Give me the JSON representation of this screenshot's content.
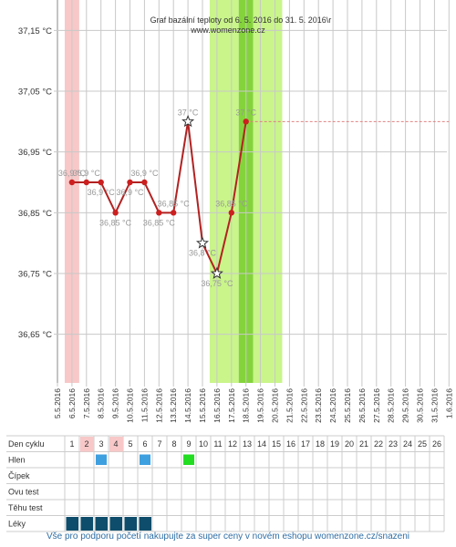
{
  "chart_data": {
    "type": "line",
    "title": "Graf bazální teploty od 6. 5. 2016 do 31. 5. 2016\\r",
    "subtitle": "www.womenzone.cz",
    "y_ticks": [
      "37,15 °C",
      "37,05 °C",
      "36,95 °C",
      "36,85 °C",
      "36,75 °C",
      "36,65 °C"
    ],
    "ylim": [
      36.57,
      37.2
    ],
    "x_dates": [
      "5.5.2016",
      "6.5.2016",
      "7.5.2016",
      "8.5.2016",
      "9.5.2016",
      "10.5.2016",
      "11.5.2016",
      "12.5.2016",
      "13.5.2016",
      "14.5.2016",
      "15.5.2016",
      "16.5.2016",
      "17.5.2016",
      "18.5.2016",
      "19.5.2016",
      "20.5.2016",
      "21.5.2016",
      "22.5.2016",
      "23.5.2016",
      "24.5.2016",
      "25.5.2016",
      "26.5.2016",
      "27.5.2016",
      "28.5.2016",
      "29.5.2016",
      "30.5.2016",
      "31.5.2016",
      "1.6.2016"
    ],
    "series": [
      {
        "values": [
          {
            "x": 1,
            "y": 36.9,
            "label": "36,9 °C",
            "marker": "dot"
          },
          {
            "x": 2,
            "y": 36.9,
            "label": "36,9 °C",
            "marker": "dot"
          },
          {
            "x": 3,
            "y": 36.9,
            "label": "36,9 °C",
            "marker": "dot"
          },
          {
            "x": 4,
            "y": 36.85,
            "label": "36,85 °C",
            "marker": "dot"
          },
          {
            "x": 5,
            "y": 36.9,
            "label": "36,9 °C",
            "marker": "dot"
          },
          {
            "x": 6,
            "y": 36.9,
            "label": "36,9 °C",
            "marker": "dot"
          },
          {
            "x": 7,
            "y": 36.85,
            "label": "36,85 °C",
            "marker": "dot"
          },
          {
            "x": 8,
            "y": 36.85,
            "label": "36,85 °C",
            "marker": "dot"
          },
          {
            "x": 9,
            "y": 37.0,
            "label": "37 °C",
            "marker": "star"
          },
          {
            "x": 10,
            "y": 36.8,
            "label": "36,8 °C",
            "marker": "star"
          },
          {
            "x": 11,
            "y": 36.75,
            "label": "36,75 °C",
            "marker": "star"
          },
          {
            "x": 12,
            "y": 36.85,
            "label": "36,85 °C",
            "marker": "dot"
          },
          {
            "x": 13,
            "y": 37.0,
            "label": "37 °C",
            "marker": "dot"
          }
        ]
      }
    ],
    "coverline": {
      "y": 37.0,
      "from_x": 13,
      "to_x": 27
    },
    "highlight_bands": [
      {
        "from_x": 0.5,
        "to_x": 1.5,
        "color": "#f8c8c8"
      },
      {
        "from_x": 10.5,
        "to_x": 12.5,
        "color": "#c9f58a"
      },
      {
        "from_x": 12.5,
        "to_x": 13.5,
        "color": "#84d33c"
      },
      {
        "from_x": 13.5,
        "to_x": 15.5,
        "color": "#c9f58a"
      }
    ],
    "grid": true
  },
  "table": {
    "row_labels": [
      "Den cyklu",
      "Hlen",
      "Čípek",
      "Ovu test",
      "Těhu test",
      "Léky"
    ],
    "days": [
      "1",
      "2",
      "3",
      "4",
      "5",
      "6",
      "7",
      "8",
      "9",
      "10",
      "11",
      "12",
      "13",
      "14",
      "15",
      "16",
      "17",
      "18",
      "19",
      "20",
      "21",
      "22",
      "23",
      "24",
      "25",
      "26"
    ],
    "pink_days": [
      "2",
      "4"
    ],
    "hlen": [
      {
        "day": "3",
        "color": "#3fa0e0"
      },
      {
        "day": "6",
        "color": "#3fa0e0"
      },
      {
        "day": "9",
        "color": "#22dd22"
      }
    ],
    "leky": [
      {
        "day": "1",
        "color": "#0e4d6b"
      },
      {
        "day": "2",
        "color": "#0e4d6b"
      },
      {
        "day": "3",
        "color": "#0e4d6b"
      },
      {
        "day": "4",
        "color": "#0e4d6b"
      },
      {
        "day": "5",
        "color": "#0e4d6b"
      },
      {
        "day": "6",
        "color": "#0e4d6b"
      }
    ]
  },
  "footer": "Vše pro podporu početí nakupujte za super ceny v novém eshopu womenzone.cz/snazeni",
  "colors": {
    "line": "#b22222",
    "grid": "#c8c8c8",
    "point_label": "#999999",
    "coverline": "#e08080",
    "footer": "#2e6da4"
  }
}
